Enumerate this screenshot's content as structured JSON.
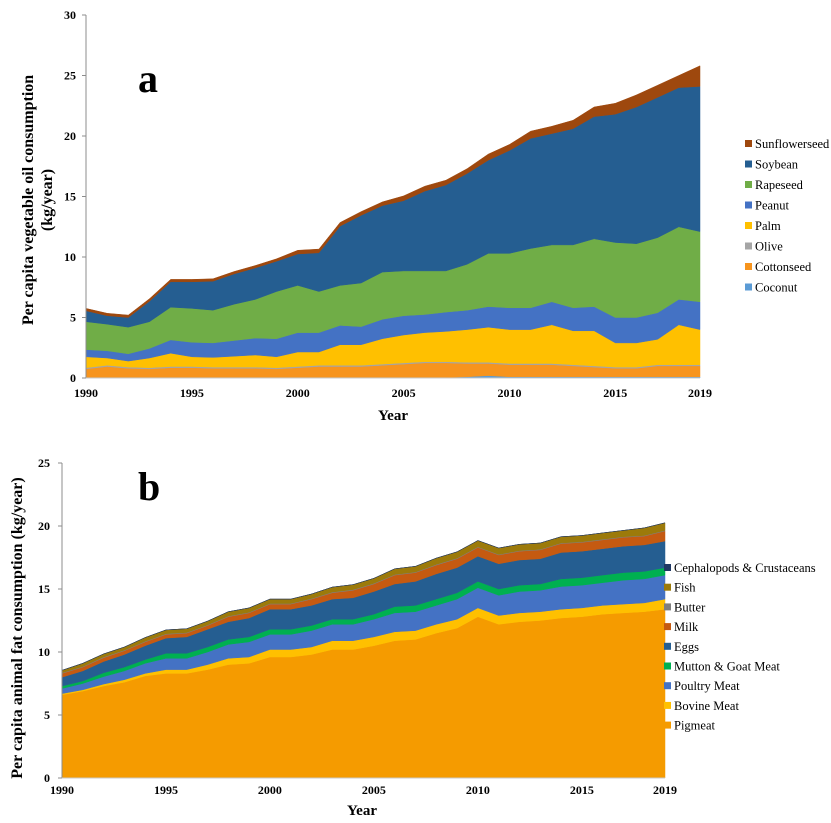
{
  "chart_data": [
    {
      "type": "area",
      "stacked": true,
      "panel_label": "a",
      "title": "",
      "xlabel": "Year",
      "ylabel_lines": [
        "Per capita vegetable oil consumption",
        "(kg/year)"
      ],
      "xlim": [
        1990,
        2019
      ],
      "ylim": [
        0,
        30
      ],
      "yticks": [
        0,
        5,
        10,
        15,
        20,
        25,
        30
      ],
      "xticks": [
        1990,
        1995,
        2000,
        2005,
        2010,
        2015,
        2019
      ],
      "grid": false,
      "legend_position": "right",
      "x": [
        1990,
        1991,
        1992,
        1993,
        1994,
        1995,
        1996,
        1997,
        1998,
        1999,
        2000,
        2001,
        2002,
        2003,
        2004,
        2005,
        2006,
        2007,
        2008,
        2009,
        2010,
        2011,
        2012,
        2013,
        2014,
        2015,
        2016,
        2017,
        2018,
        2019
      ],
      "series": [
        {
          "name": "Coconut",
          "color": "#5B9BD5",
          "values": [
            0.05,
            0.05,
            0.05,
            0.05,
            0.05,
            0.05,
            0.05,
            0.05,
            0.05,
            0.05,
            0.05,
            0.05,
            0.05,
            0.05,
            0.05,
            0.05,
            0.05,
            0.05,
            0.1,
            0.2,
            0.1,
            0.1,
            0.1,
            0.1,
            0.1,
            0.1,
            0.1,
            0.1,
            0.1,
            0.1
          ]
        },
        {
          "name": "Cottonseed",
          "color": "#F7941D",
          "values": [
            0.7,
            0.9,
            0.75,
            0.7,
            0.8,
            0.8,
            0.75,
            0.75,
            0.75,
            0.7,
            0.8,
            0.9,
            0.9,
            0.9,
            1.0,
            1.1,
            1.2,
            1.2,
            1.1,
            1.0,
            1.0,
            1.0,
            1.0,
            0.9,
            0.8,
            0.7,
            0.7,
            0.9,
            0.9,
            0.9
          ]
        },
        {
          "name": "Olive",
          "color": "#A5A5A5",
          "values": [
            0.1,
            0.1,
            0.1,
            0.1,
            0.1,
            0.1,
            0.1,
            0.1,
            0.1,
            0.1,
            0.1,
            0.1,
            0.1,
            0.1,
            0.1,
            0.1,
            0.1,
            0.1,
            0.1,
            0.1,
            0.1,
            0.1,
            0.1,
            0.1,
            0.1,
            0.1,
            0.1,
            0.1,
            0.1,
            0.1
          ]
        },
        {
          "name": "Palm",
          "color": "#FFC000",
          "values": [
            0.9,
            0.6,
            0.5,
            0.8,
            1.1,
            0.8,
            0.8,
            0.9,
            1.0,
            0.9,
            1.2,
            1.1,
            1.7,
            1.7,
            2.1,
            2.3,
            2.4,
            2.5,
            2.7,
            2.9,
            2.8,
            2.8,
            3.2,
            2.8,
            2.9,
            2.0,
            2.0,
            2.1,
            3.3,
            2.9
          ]
        },
        {
          "name": "Peanut",
          "color": "#4472C4",
          "values": [
            0.6,
            0.6,
            0.6,
            0.8,
            1.1,
            1.2,
            1.2,
            1.3,
            1.4,
            1.5,
            1.6,
            1.6,
            1.6,
            1.5,
            1.6,
            1.6,
            1.5,
            1.6,
            1.6,
            1.7,
            1.8,
            1.8,
            1.9,
            1.9,
            2.0,
            2.1,
            2.1,
            2.2,
            2.1,
            2.3
          ]
        },
        {
          "name": "Rapeseed",
          "color": "#70AD47",
          "values": [
            2.3,
            2.2,
            2.2,
            2.2,
            2.7,
            2.8,
            2.7,
            3.0,
            3.2,
            3.9,
            3.9,
            3.4,
            3.3,
            3.6,
            3.9,
            3.7,
            3.6,
            3.4,
            3.8,
            4.4,
            4.5,
            4.9,
            4.7,
            5.2,
            5.6,
            6.2,
            6.1,
            6.2,
            6.0,
            5.8
          ]
        },
        {
          "name": "Soybean",
          "color": "#255E91",
          "values": [
            0.9,
            0.7,
            0.8,
            1.7,
            2.1,
            2.2,
            2.4,
            2.5,
            2.6,
            2.5,
            2.6,
            3.2,
            4.9,
            5.6,
            5.5,
            5.8,
            6.6,
            7.1,
            7.5,
            7.7,
            8.5,
            9.1,
            9.2,
            9.6,
            10.1,
            10.6,
            11.3,
            11.6,
            11.5,
            12.0
          ]
        },
        {
          "name": "Sunflowerseed",
          "color": "#9E480E",
          "values": [
            0.2,
            0.2,
            0.2,
            0.2,
            0.2,
            0.2,
            0.2,
            0.2,
            0.2,
            0.2,
            0.3,
            0.3,
            0.3,
            0.3,
            0.3,
            0.4,
            0.4,
            0.4,
            0.4,
            0.5,
            0.5,
            0.6,
            0.6,
            0.7,
            0.8,
            0.9,
            1.0,
            1.0,
            1.0,
            1.7
          ]
        }
      ]
    },
    {
      "type": "area",
      "stacked": true,
      "panel_label": "b",
      "title": "",
      "xlabel": "Year",
      "ylabel_lines": [
        "Per capita animal fat consumption  (kg/year)"
      ],
      "xlim": [
        1990,
        2019
      ],
      "ylim": [
        0,
        25
      ],
      "yticks": [
        0,
        5,
        10,
        15,
        20,
        25
      ],
      "xticks": [
        1990,
        1995,
        2000,
        2005,
        2010,
        2015,
        2019
      ],
      "grid": false,
      "legend_position": "right",
      "x": [
        1990,
        1991,
        1992,
        1993,
        1994,
        1995,
        1996,
        1997,
        1998,
        1999,
        2000,
        2001,
        2002,
        2003,
        2004,
        2005,
        2006,
        2007,
        2008,
        2009,
        2010,
        2011,
        2012,
        2013,
        2014,
        2015,
        2016,
        2017,
        2018,
        2019
      ],
      "series": [
        {
          "name": "Pigmeat",
          "color": "#F59B00",
          "values": [
            6.6,
            6.9,
            7.3,
            7.6,
            8.1,
            8.3,
            8.3,
            8.6,
            9.0,
            9.1,
            9.6,
            9.6,
            9.8,
            10.2,
            10.2,
            10.5,
            10.9,
            11.0,
            11.5,
            11.9,
            12.8,
            12.2,
            12.4,
            12.5,
            12.7,
            12.8,
            13.0,
            13.1,
            13.2,
            13.4
          ]
        },
        {
          "name": "Bovine Meat",
          "color": "#FFC000",
          "values": [
            0.1,
            0.1,
            0.15,
            0.2,
            0.2,
            0.3,
            0.3,
            0.4,
            0.5,
            0.5,
            0.6,
            0.6,
            0.6,
            0.7,
            0.7,
            0.7,
            0.7,
            0.7,
            0.7,
            0.7,
            0.7,
            0.7,
            0.7,
            0.7,
            0.7,
            0.7,
            0.7,
            0.7,
            0.7,
            0.8
          ]
        },
        {
          "name": "Poultry Meat",
          "color": "#4472C4",
          "values": [
            0.4,
            0.5,
            0.6,
            0.7,
            0.8,
            0.9,
            0.9,
            1.0,
            1.1,
            1.2,
            1.2,
            1.2,
            1.3,
            1.3,
            1.3,
            1.4,
            1.5,
            1.5,
            1.5,
            1.6,
            1.6,
            1.6,
            1.7,
            1.7,
            1.8,
            1.8,
            1.8,
            1.9,
            1.9,
            1.9
          ]
        },
        {
          "name": "Mutton & Goat Meat",
          "color": "#00B050",
          "values": [
            0.2,
            0.2,
            0.3,
            0.3,
            0.3,
            0.4,
            0.4,
            0.4,
            0.4,
            0.4,
            0.4,
            0.4,
            0.4,
            0.4,
            0.4,
            0.4,
            0.5,
            0.5,
            0.5,
            0.5,
            0.5,
            0.5,
            0.5,
            0.5,
            0.6,
            0.6,
            0.6,
            0.6,
            0.6,
            0.6
          ]
        },
        {
          "name": "Eggs",
          "color": "#255E91",
          "values": [
            0.7,
            0.8,
            0.9,
            1.0,
            1.1,
            1.2,
            1.3,
            1.4,
            1.4,
            1.5,
            1.6,
            1.6,
            1.6,
            1.6,
            1.7,
            1.8,
            1.8,
            1.9,
            2.0,
            2.0,
            2.0,
            2.0,
            2.0,
            2.0,
            2.1,
            2.1,
            2.1,
            2.1,
            2.1,
            2.1
          ]
        },
        {
          "name": "Milk",
          "color": "#C55A11",
          "values": [
            0.3,
            0.3,
            0.3,
            0.3,
            0.3,
            0.3,
            0.3,
            0.3,
            0.4,
            0.4,
            0.4,
            0.4,
            0.5,
            0.5,
            0.6,
            0.6,
            0.7,
            0.7,
            0.7,
            0.7,
            0.7,
            0.7,
            0.7,
            0.7,
            0.7,
            0.7,
            0.7,
            0.7,
            0.7,
            0.8
          ]
        },
        {
          "name": "Butter",
          "color": "#7F7F7F",
          "values": [
            0.05,
            0.05,
            0.05,
            0.05,
            0.05,
            0.05,
            0.05,
            0.05,
            0.05,
            0.05,
            0.05,
            0.05,
            0.05,
            0.05,
            0.05,
            0.05,
            0.05,
            0.05,
            0.05,
            0.05,
            0.05,
            0.05,
            0.05,
            0.05,
            0.05,
            0.05,
            0.05,
            0.05,
            0.05,
            0.05
          ]
        },
        {
          "name": "Fish",
          "color": "#9C7A0A",
          "values": [
            0.2,
            0.25,
            0.25,
            0.25,
            0.3,
            0.3,
            0.3,
            0.3,
            0.35,
            0.35,
            0.35,
            0.35,
            0.35,
            0.4,
            0.4,
            0.4,
            0.45,
            0.45,
            0.5,
            0.5,
            0.5,
            0.5,
            0.5,
            0.5,
            0.5,
            0.5,
            0.5,
            0.5,
            0.6,
            0.6
          ]
        },
        {
          "name": "Cephalopods & Crustaceans",
          "color": "#203864",
          "values": [
            0.0,
            0.0,
            0.0,
            0.0,
            0.0,
            0.0,
            0.0,
            0.0,
            0.0,
            0.0,
            0.0,
            0.0,
            0.0,
            0.0,
            0.0,
            0.0,
            0.0,
            0.0,
            0.0,
            0.0,
            0.0,
            0.0,
            0.0,
            0.0,
            0.0,
            0.0,
            0.0,
            0.0,
            0.0,
            0.0
          ]
        }
      ]
    }
  ]
}
